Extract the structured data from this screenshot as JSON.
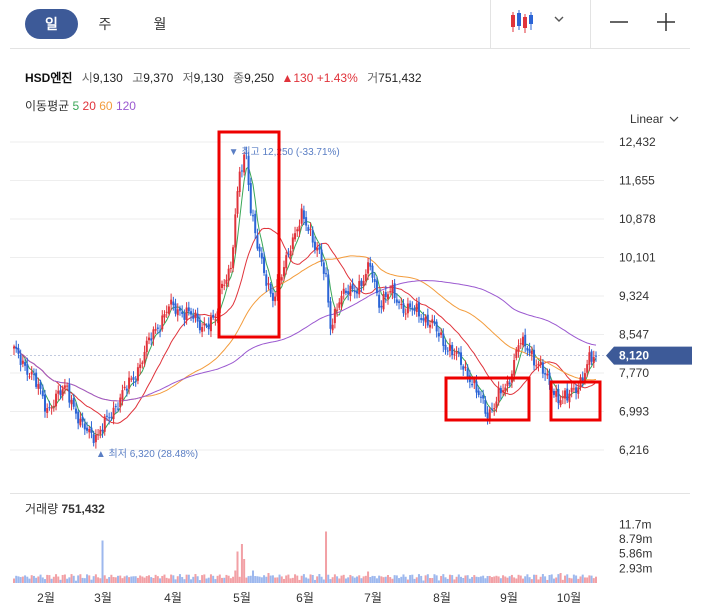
{
  "toolbar": {
    "tabs": [
      {
        "label": "일",
        "active": true
      },
      {
        "label": "주",
        "active": false
      },
      {
        "label": "월",
        "active": false
      }
    ],
    "chart_type_icon": "candlestick-icon",
    "dropdown_icon": "chevron-down-icon",
    "zoom_out_icon": "minus-icon",
    "zoom_in_icon": "plus-icon"
  },
  "info": {
    "name": "HSD엔진",
    "open_label": "시",
    "open": "9,130",
    "high_label": "고",
    "high": "9,370",
    "low_label": "저",
    "low": "9,130",
    "close_label": "종",
    "close": "9,250",
    "change_arrow": "▲",
    "change": "130",
    "change_pct": "+1.43%",
    "volume_label": "거",
    "volume": "751,432"
  },
  "ma_legend": {
    "label": "이동평균",
    "items": [
      {
        "period": "5",
        "color": "#3aa757"
      },
      {
        "period": "20",
        "color": "#e0333b"
      },
      {
        "period": "60",
        "color": "#f39c3c"
      },
      {
        "period": "120",
        "color": "#9b59d0"
      }
    ]
  },
  "scale_label": "Linear",
  "volume_panel": {
    "label": "거래량",
    "value": "751,432"
  },
  "colors": {
    "up": "#e0333b",
    "down": "#2b64d6",
    "price_tag": "#3d5a98",
    "highlight_box": "#ee0000",
    "annotation": "#5a7ec4"
  },
  "chart_data": {
    "type": "candlestick",
    "price_axis": {
      "ticks": [
        "12,432",
        "11,655",
        "10,878",
        "10,101",
        "9,324",
        "8,547",
        "7,770",
        "6,993",
        "6,216"
      ],
      "ylim": [
        6216,
        12432
      ]
    },
    "x_axis": {
      "ticks": [
        "2월",
        "3월",
        "4월",
        "5월",
        "6월",
        "7월",
        "8월",
        "9월",
        "10월"
      ]
    },
    "current_price": {
      "value": 8120,
      "label": "8,120"
    },
    "annotations": {
      "high": {
        "arrow": "▼",
        "label": "최고",
        "value": "12,250",
        "pct": "(-33.71%)"
      },
      "low": {
        "arrow": "▲",
        "label": "최저",
        "value": "6,320",
        "pct": "(28.48%)"
      }
    },
    "volume_axis": {
      "ticks": [
        "11.7m",
        "8.79m",
        "5.86m",
        "2.93m"
      ],
      "ylim": [
        0,
        12000000
      ]
    },
    "price_path": [
      [
        0,
        8200
      ],
      [
        8,
        7750
      ],
      [
        15,
        7050
      ],
      [
        24,
        7500
      ],
      [
        30,
        6700
      ],
      [
        38,
        6500
      ],
      [
        47,
        7200
      ],
      [
        55,
        7750
      ],
      [
        62,
        8500
      ],
      [
        70,
        9100
      ],
      [
        78,
        9000
      ],
      [
        84,
        8750
      ],
      [
        91,
        8800
      ],
      [
        94,
        9600
      ],
      [
        98,
        9900
      ],
      [
        102,
        11800
      ],
      [
        105,
        12250
      ],
      [
        107,
        11100
      ],
      [
        110,
        10300
      ],
      [
        113,
        9800
      ],
      [
        117,
        9300
      ],
      [
        121,
        9700
      ],
      [
        125,
        10400
      ],
      [
        130,
        10900
      ],
      [
        134,
        10600
      ],
      [
        138,
        10200
      ],
      [
        141,
        9600
      ],
      [
        143,
        8700
      ],
      [
        147,
        9300
      ],
      [
        152,
        9400
      ],
      [
        157,
        9600
      ],
      [
        161,
        9900
      ],
      [
        165,
        9200
      ],
      [
        170,
        9400
      ],
      [
        176,
        9100
      ],
      [
        182,
        9000
      ],
      [
        188,
        8800
      ],
      [
        194,
        8400
      ],
      [
        200,
        8100
      ],
      [
        206,
        7700
      ],
      [
        210,
        7300
      ],
      [
        214,
        6950
      ],
      [
        219,
        7300
      ],
      [
        223,
        7500
      ],
      [
        228,
        8400
      ],
      [
        233,
        8200
      ],
      [
        238,
        7900
      ],
      [
        242,
        7500
      ],
      [
        246,
        7300
      ],
      [
        250,
        7250
      ],
      [
        254,
        7500
      ],
      [
        257,
        7700
      ],
      [
        260,
        8000
      ],
      [
        263,
        8120
      ]
    ],
    "volume_spikes": [
      [
        40,
        8500000
      ],
      [
        100,
        2500000
      ],
      [
        101,
        6300000
      ],
      [
        103,
        7800000
      ],
      [
        104,
        4800000
      ],
      [
        108,
        2500000
      ],
      [
        141,
        10300000
      ],
      [
        115,
        2000000
      ],
      [
        160,
        2300000
      ],
      [
        247,
        2000000
      ]
    ]
  }
}
